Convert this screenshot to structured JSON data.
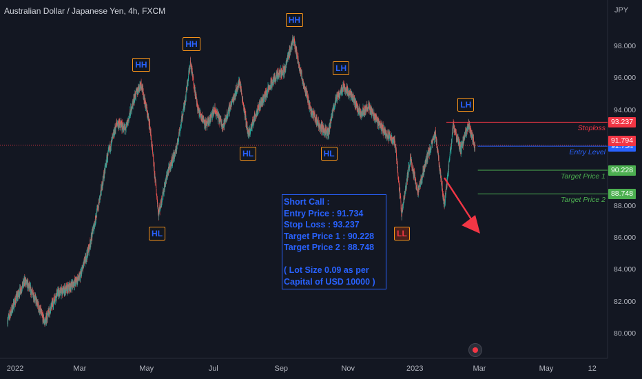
{
  "header": {
    "title": "Australian Dollar / Japanese Yen, 4h, FXCM",
    "currency": "JPY"
  },
  "chart_data": {
    "type": "candlestick",
    "ylim": [
      79.0,
      100.3
    ],
    "y_ticks": [
      "98.000",
      "96.000",
      "94.000",
      "88.000",
      "86.000",
      "84.000",
      "82.000",
      "80.000"
    ],
    "x_ticks": [
      "2022",
      "Mar",
      "May",
      "Jul",
      "Sep",
      "Nov",
      "2023",
      "Mar",
      "May",
      "12"
    ],
    "x_tick_dates": [
      "2022-01-01",
      "2022-03-01",
      "2022-05-01",
      "2022-07-01",
      "2022-09-01",
      "2022-11-01",
      "2023-01-01",
      "2023-03-01",
      "2023-05-01",
      "2023-06-12"
    ],
    "price_path": [
      [
        "2021-12-25",
        80.8
      ],
      [
        "2022-01-02",
        82.2
      ],
      [
        "2022-01-10",
        83.3
      ],
      [
        "2022-01-18",
        82.4
      ],
      [
        "2022-01-28",
        80.7
      ],
      [
        "2022-02-08",
        82.5
      ],
      [
        "2022-02-18",
        82.8
      ],
      [
        "2022-03-01",
        83.5
      ],
      [
        "2022-03-10",
        85.5
      ],
      [
        "2022-03-18",
        88.0
      ],
      [
        "2022-03-26",
        91.0
      ],
      [
        "2022-04-04",
        93.2
      ],
      [
        "2022-04-12",
        92.8
      ],
      [
        "2022-04-20",
        94.8
      ],
      [
        "2022-04-26",
        95.7
      ],
      [
        "2022-05-04",
        93.0
      ],
      [
        "2022-05-12",
        87.5
      ],
      [
        "2022-05-20",
        90.0
      ],
      [
        "2022-05-28",
        91.5
      ],
      [
        "2022-06-05",
        94.5
      ],
      [
        "2022-06-10",
        97.0
      ],
      [
        "2022-06-17",
        94.0
      ],
      [
        "2022-06-25",
        93.0
      ],
      [
        "2022-07-02",
        94.0
      ],
      [
        "2022-07-10",
        93.0
      ],
      [
        "2022-07-18",
        94.5
      ],
      [
        "2022-07-25",
        95.8
      ],
      [
        "2022-08-02",
        92.4
      ],
      [
        "2022-08-10",
        94.0
      ],
      [
        "2022-08-18",
        95.0
      ],
      [
        "2022-08-26",
        96.0
      ],
      [
        "2022-09-04",
        96.5
      ],
      [
        "2022-09-12",
        98.5
      ],
      [
        "2022-09-20",
        96.0
      ],
      [
        "2022-09-28",
        94.0
      ],
      [
        "2022-10-06",
        93.0
      ],
      [
        "2022-10-14",
        92.5
      ],
      [
        "2022-10-20",
        94.5
      ],
      [
        "2022-10-28",
        95.5
      ],
      [
        "2022-11-05",
        94.8
      ],
      [
        "2022-11-12",
        93.8
      ],
      [
        "2022-11-20",
        94.2
      ],
      [
        "2022-11-28",
        93.3
      ],
      [
        "2022-12-06",
        92.5
      ],
      [
        "2022-12-14",
        92.0
      ],
      [
        "2022-12-20",
        87.5
      ],
      [
        "2022-12-28",
        91.0
      ],
      [
        "2023-01-04",
        88.8
      ],
      [
        "2023-01-12",
        91.0
      ],
      [
        "2023-01-20",
        92.5
      ],
      [
        "2023-01-28",
        88.0
      ],
      [
        "2023-02-05",
        93.0
      ],
      [
        "2023-02-12",
        91.5
      ],
      [
        "2023-02-19",
        93.1
      ],
      [
        "2023-02-25",
        91.7
      ]
    ],
    "price_lines": [
      {
        "label": "Stoploss",
        "value": 93.237,
        "badge": "93.237",
        "color": "#f23645"
      },
      {
        "label": "Entry Level",
        "value": 91.734,
        "badge": "91.734",
        "color": "#2962ff"
      },
      {
        "label": "Target Price 1",
        "value": 90.228,
        "badge": "90.228",
        "color": "#4caf50"
      },
      {
        "label": "Target Price 2",
        "value": 88.748,
        "badge": "88.748",
        "color": "#4caf50"
      }
    ],
    "last_price": {
      "value": 91.794,
      "badge": "91.794",
      "color": "#f23645"
    },
    "pattern_labels": [
      {
        "text": "HH",
        "date": "2022-04-25",
        "value": 95.7
      },
      {
        "text": "HL",
        "date": "2022-05-10",
        "value": 87.4
      },
      {
        "text": "HH",
        "date": "2022-06-10",
        "value": 97.0
      },
      {
        "text": "HL",
        "date": "2022-08-01",
        "value": 92.4
      },
      {
        "text": "HH",
        "date": "2022-09-12",
        "value": 98.5
      },
      {
        "text": "HL",
        "date": "2022-10-14",
        "value": 92.4
      },
      {
        "text": "LH",
        "date": "2022-10-25",
        "value": 95.5
      },
      {
        "text": "LL",
        "date": "2022-12-20",
        "value": 87.4
      },
      {
        "text": "LH",
        "date": "2023-02-16",
        "value": 93.2
      }
    ],
    "call_box": [
      "Short Call :",
      "Entry Price : 91.734",
      "Stop Loss : 93.237",
      "Target Price 1 : 90.228",
      "Target Price 2 : 88.748",
      "",
      "( Lot Size 0.09 as per",
      "Capital of USD 10000 )"
    ],
    "colors": {
      "up": "#26a69a",
      "down": "#ef5350",
      "arrow": "#f23645",
      "label_border": "#f7931a",
      "text_blue": "#2962ff"
    }
  }
}
